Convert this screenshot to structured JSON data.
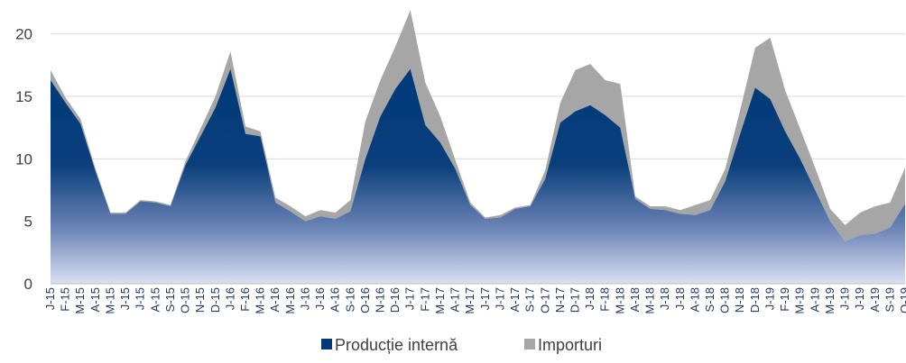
{
  "chart_data": {
    "type": "area",
    "stacked": true,
    "title": "",
    "xlabel": "",
    "ylabel": "",
    "ylim": [
      0,
      22
    ],
    "yticks": [
      0,
      5,
      10,
      15,
      20
    ],
    "grid": "horizontal",
    "legend_position": "bottom",
    "categories": [
      "J-15",
      "F-15",
      "M-15",
      "A-15",
      "M-15",
      "J-15",
      "J-15",
      "A-15",
      "S-15",
      "O-15",
      "N-15",
      "D-15",
      "J-16",
      "F-16",
      "M-16",
      "A-16",
      "M-16",
      "J-16",
      "J-16",
      "A-16",
      "S-16",
      "O-16",
      "N-16",
      "D-16",
      "J-17",
      "F-17",
      "M-17",
      "A-17",
      "M-17",
      "J-17",
      "J-17",
      "A-17",
      "S-17",
      "O-17",
      "N-17",
      "D-17",
      "J-18",
      "F-18",
      "M-18",
      "A-18",
      "M-18",
      "J-18",
      "J-18",
      "A-18",
      "S-18",
      "O-18",
      "N-18",
      "D-18",
      "J-19",
      "F-19",
      "M-19",
      "A-19",
      "M-19",
      "J-19",
      "J-19",
      "A-19",
      "S-19",
      "O-19"
    ],
    "series": [
      {
        "name": "Producție internă",
        "color": "#003a78",
        "values": [
          16.3,
          14.5,
          12.8,
          9.0,
          5.6,
          5.6,
          6.6,
          6.5,
          6.2,
          9.5,
          11.8,
          14.1,
          17.2,
          12.0,
          11.8,
          6.5,
          5.8,
          5.0,
          5.4,
          5.2,
          5.8,
          10.0,
          13.4,
          15.6,
          17.2,
          12.7,
          11.3,
          9.2,
          6.3,
          5.2,
          5.3,
          6.0,
          6.2,
          8.4,
          12.9,
          13.8,
          14.3,
          13.5,
          12.5,
          6.8,
          6.0,
          5.9,
          5.6,
          5.5,
          5.9,
          8.2,
          12.0,
          15.7,
          14.8,
          12.2,
          10.0,
          7.5,
          5.0,
          3.4,
          3.9,
          4.0,
          4.5,
          6.4
        ]
      },
      {
        "name": "Importuri",
        "color": "#a6a6a6",
        "values": [
          0.8,
          0.4,
          0.4,
          0.2,
          0.1,
          0.1,
          0.1,
          0.1,
          0.1,
          0.3,
          0.6,
          0.9,
          1.4,
          0.6,
          0.4,
          0.4,
          0.4,
          0.4,
          0.5,
          0.5,
          0.9,
          3.0,
          2.9,
          3.4,
          4.7,
          3.4,
          2.1,
          0.7,
          0.2,
          0.1,
          0.2,
          0.1,
          0.1,
          0.7,
          1.6,
          3.3,
          3.3,
          2.8,
          3.5,
          0.2,
          0.2,
          0.3,
          0.3,
          0.8,
          0.8,
          1.0,
          1.9,
          3.2,
          4.9,
          3.3,
          2.4,
          1.8,
          1.0,
          1.3,
          1.8,
          2.2,
          2.0,
          2.9
        ]
      }
    ]
  }
}
